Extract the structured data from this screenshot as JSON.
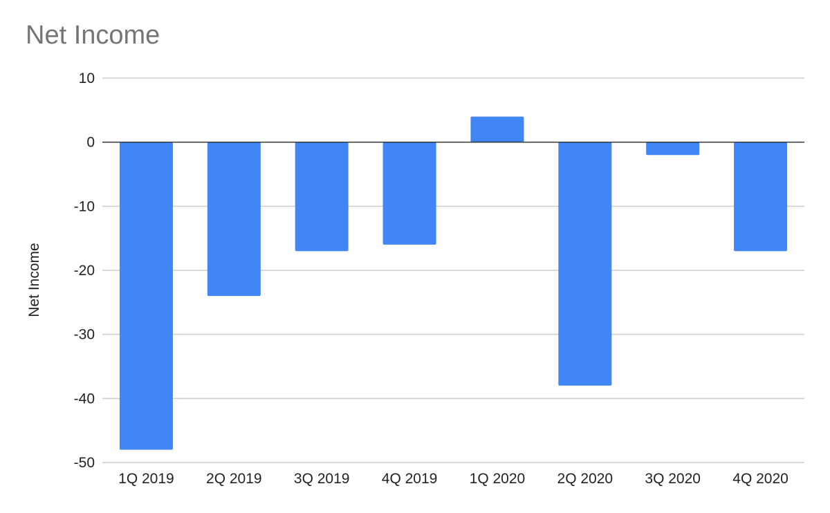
{
  "chart_data": {
    "type": "bar",
    "title": "Net Income",
    "xlabel": "",
    "ylabel": "Net Income",
    "categories": [
      "1Q 2019",
      "2Q 2019",
      "3Q 2019",
      "4Q 2019",
      "1Q 2020",
      "2Q 2020",
      "3Q 2020",
      "4Q 2020"
    ],
    "series": [
      {
        "values": [
          -48,
          -24,
          -17,
          -16,
          4,
          -38,
          -2,
          -17
        ]
      }
    ],
    "ylim": [
      -50,
      10
    ],
    "yticks": [
      10,
      0,
      -10,
      -20,
      -30,
      -40,
      -50
    ],
    "grid": true,
    "legend": "none",
    "colors": {
      "bar": "#4285f4",
      "grid": "#cccccc",
      "zero_line": "#333333"
    }
  }
}
